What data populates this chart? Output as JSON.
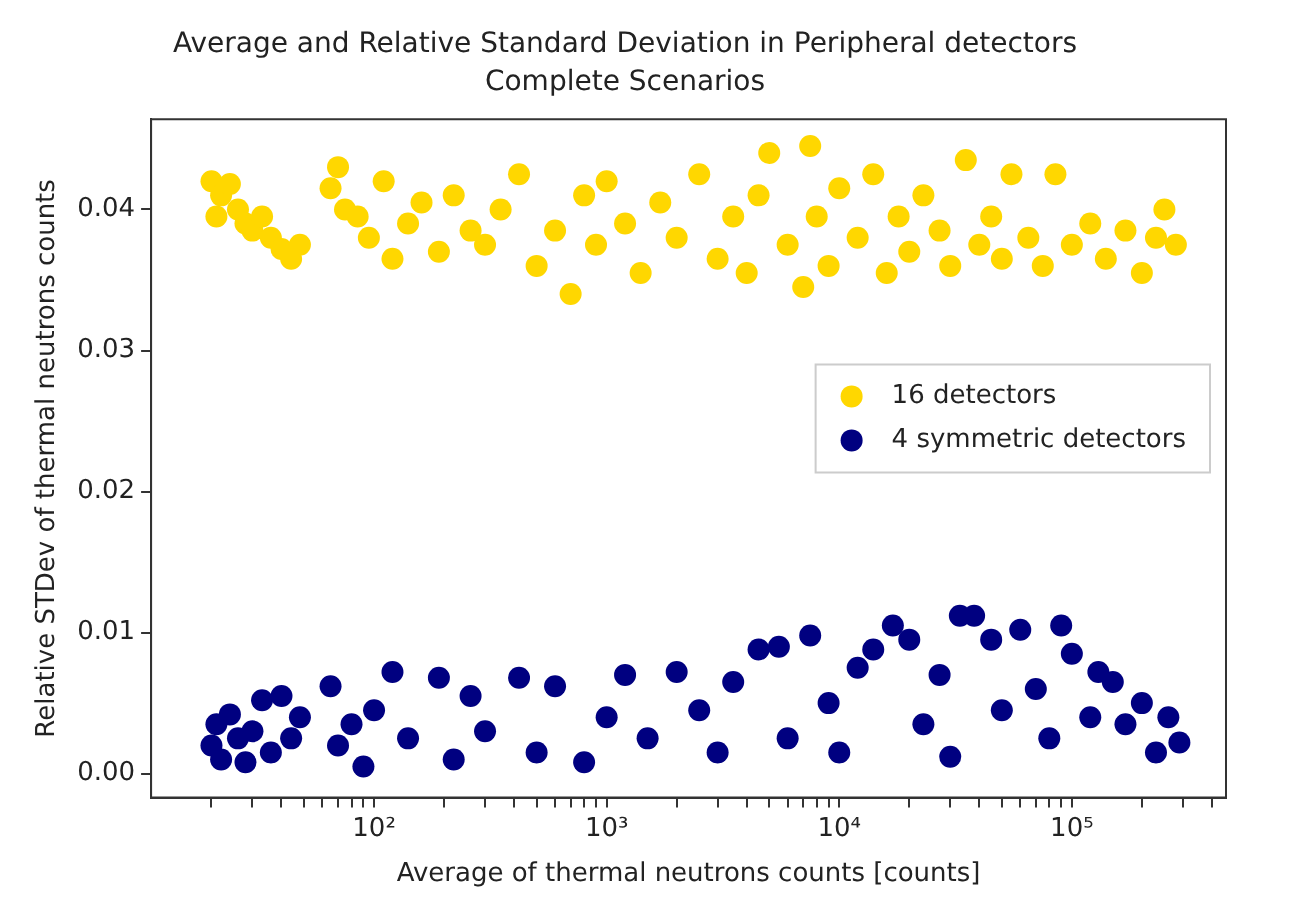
{
  "chart_data": {
    "type": "scatter",
    "title": "Average and Relative Standard Deviation in Peripheral detectors",
    "subtitle": "Complete Scenarios",
    "xlabel": "Average of thermal neutrons counts [counts]",
    "ylabel": "Relative STDev of thermal neutrons counts",
    "log": "x",
    "grid": false,
    "legend": "right",
    "marker": "circle",
    "xlim": [
      11,
      460000
    ],
    "ylim": [
      -0.0017,
      0.0464
    ],
    "xticks": [
      {
        "value": 20,
        "label": null
      },
      {
        "value": 30,
        "label": null
      },
      {
        "value": 40,
        "label": null
      },
      {
        "value": 50,
        "label": null
      },
      {
        "value": 60,
        "label": null
      },
      {
        "value": 70,
        "label": null
      },
      {
        "value": 80,
        "label": null
      },
      {
        "value": 90,
        "label": null
      },
      {
        "value": 100,
        "label": "10²"
      },
      {
        "value": 200,
        "label": null
      },
      {
        "value": 300,
        "label": null
      },
      {
        "value": 400,
        "label": null
      },
      {
        "value": 500,
        "label": null
      },
      {
        "value": 600,
        "label": null
      },
      {
        "value": 700,
        "label": null
      },
      {
        "value": 800,
        "label": null
      },
      {
        "value": 900,
        "label": null
      },
      {
        "value": 1000,
        "label": "10³"
      },
      {
        "value": 2000,
        "label": null
      },
      {
        "value": 3000,
        "label": null
      },
      {
        "value": 4000,
        "label": null
      },
      {
        "value": 5000,
        "label": null
      },
      {
        "value": 6000,
        "label": null
      },
      {
        "value": 7000,
        "label": null
      },
      {
        "value": 8000,
        "label": null
      },
      {
        "value": 9000,
        "label": null
      },
      {
        "value": 10000,
        "label": "10⁴"
      },
      {
        "value": 20000,
        "label": null
      },
      {
        "value": 30000,
        "label": null
      },
      {
        "value": 40000,
        "label": null
      },
      {
        "value": 50000,
        "label": null
      },
      {
        "value": 60000,
        "label": null
      },
      {
        "value": 70000,
        "label": null
      },
      {
        "value": 80000,
        "label": null
      },
      {
        "value": 90000,
        "label": null
      },
      {
        "value": 100000,
        "label": "10⁵"
      },
      {
        "value": 200000,
        "label": null
      },
      {
        "value": 300000,
        "label": null
      },
      {
        "value": 400000,
        "label": null
      }
    ],
    "yticks": [
      {
        "value": 0,
        "label": "0.00"
      },
      0.01,
      0.02,
      0.03,
      0.04
    ],
    "series": [
      {
        "name": "16 detectors",
        "color": "#ffd700",
        "x": [
          20,
          21,
          22,
          24,
          26,
          28,
          30,
          33,
          36,
          40,
          44,
          48,
          65,
          70,
          75,
          85,
          95,
          110,
          120,
          140,
          160,
          190,
          220,
          260,
          300,
          350,
          420,
          500,
          600,
          700,
          800,
          900,
          1000,
          1200,
          1400,
          1700,
          2000,
          2500,
          3000,
          3500,
          4000,
          4500,
          5000,
          6000,
          7000,
          7500,
          8000,
          9000,
          10000,
          12000,
          14000,
          16000,
          18000,
          20000,
          23000,
          27000,
          30000,
          35000,
          40000,
          45000,
          50000,
          55000,
          65000,
          75000,
          85000,
          100000,
          120000,
          140000,
          170000,
          200000,
          230000,
          250000,
          280000
        ],
        "values": [
          0.042,
          0.0395,
          0.041,
          0.0418,
          0.04,
          0.039,
          0.0385,
          0.0395,
          0.038,
          0.0372,
          0.0365,
          0.0375,
          0.0415,
          0.043,
          0.04,
          0.0395,
          0.038,
          0.042,
          0.0365,
          0.039,
          0.0405,
          0.037,
          0.041,
          0.0385,
          0.0375,
          0.04,
          0.0425,
          0.036,
          0.0385,
          0.034,
          0.041,
          0.0375,
          0.042,
          0.039,
          0.0355,
          0.0405,
          0.038,
          0.0425,
          0.0365,
          0.0395,
          0.0355,
          0.041,
          0.044,
          0.0375,
          0.0345,
          0.0445,
          0.0395,
          0.036,
          0.0415,
          0.038,
          0.0425,
          0.0355,
          0.0395,
          0.037,
          0.041,
          0.0385,
          0.036,
          0.0435,
          0.0375,
          0.0395,
          0.0365,
          0.0425,
          0.038,
          0.036,
          0.0425,
          0.0375,
          0.039,
          0.0365,
          0.0385,
          0.0355,
          0.038,
          0.04,
          0.0375
        ]
      },
      {
        "name": "4 symmetric detectors",
        "color": "#000080",
        "x": [
          20,
          21,
          22,
          24,
          26,
          28,
          30,
          33,
          36,
          40,
          44,
          48,
          65,
          70,
          80,
          90,
          100,
          120,
          140,
          190,
          220,
          260,
          300,
          420,
          500,
          600,
          800,
          1000,
          1200,
          1500,
          2000,
          2500,
          3000,
          3500,
          4500,
          5500,
          6000,
          7500,
          9000,
          10000,
          12000,
          14000,
          17000,
          20000,
          23000,
          27000,
          30000,
          33000,
          38000,
          45000,
          50000,
          60000,
          70000,
          80000,
          90000,
          100000,
          120000,
          130000,
          150000,
          170000,
          200000,
          230000,
          260000,
          290000
        ],
        "values": [
          0.002,
          0.0035,
          0.001,
          0.0042,
          0.0025,
          0.0008,
          0.003,
          0.0052,
          0.0015,
          0.0055,
          0.0025,
          0.004,
          0.0062,
          0.002,
          0.0035,
          0.0005,
          0.0045,
          0.0072,
          0.0025,
          0.0068,
          0.001,
          0.0055,
          0.003,
          0.0068,
          0.0015,
          0.0062,
          0.0008,
          0.004,
          0.007,
          0.0025,
          0.0072,
          0.0045,
          0.0015,
          0.0065,
          0.0088,
          0.009,
          0.0025,
          0.0098,
          0.005,
          0.0015,
          0.0075,
          0.0088,
          0.0105,
          0.0095,
          0.0035,
          0.007,
          0.0012,
          0.0112,
          0.0112,
          0.0095,
          0.0045,
          0.0102,
          0.006,
          0.0025,
          0.0105,
          0.0085,
          0.004,
          0.0072,
          0.0065,
          0.0035,
          0.005,
          0.0015,
          0.004,
          0.0022
        ]
      }
    ]
  }
}
